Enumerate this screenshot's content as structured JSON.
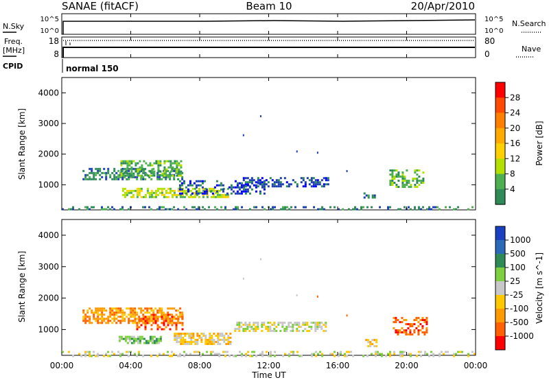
{
  "header": {
    "station": "SANAE (fitACF)",
    "beam": "Beam 10",
    "date": "20/Apr/2010"
  },
  "sky_panel": {
    "left_label": "N.Sky",
    "right_label": "N.Search",
    "left_ticks": [
      "10^5",
      "10^0"
    ],
    "right_ticks": [
      "10^5",
      "10^0"
    ]
  },
  "freq_panel": {
    "left_label_1": "Freq.",
    "left_label_2": "[MHz]",
    "right_label": "Nave",
    "left_ticks": [
      "18",
      "8"
    ],
    "right_ticks": [
      "80",
      "0"
    ]
  },
  "cpid": {
    "label": "CPID",
    "value": "normal 150"
  },
  "x_axis": {
    "label": "Time UT",
    "ticks": [
      "00:00",
      "04:00",
      "08:00",
      "12:00",
      "16:00",
      "20:00",
      "00:00"
    ]
  },
  "power_colorbar": {
    "label": "Power [dB]",
    "ticks": [
      "28",
      "24",
      "20",
      "16",
      "12",
      "8",
      "4"
    ],
    "colors": [
      "#ff0000",
      "#ff4a00",
      "#ff8000",
      "#ffaa00",
      "#ffd000",
      "#b4e000",
      "#4caf50",
      "#2e8b57",
      "#1e3fb0",
      "#0000ff"
    ]
  },
  "velocity_colorbar": {
    "label": "Velocity [m s^-1]",
    "ticks": [
      "1000",
      "500",
      "100",
      "25",
      "-25",
      "-100",
      "-500",
      "-1000"
    ],
    "colors": [
      "#1a3fc0",
      "#2a6ab8",
      "#2e8b57",
      "#7fd040",
      "#c8c8c8",
      "#ffc800",
      "#ff9a00",
      "#ff6000",
      "#ff0000"
    ]
  },
  "chart_data": [
    {
      "type": "heatmap",
      "title": "",
      "xlabel": "Time UT",
      "ylabel": "Slant Range [km]",
      "x_range_hours": [
        0,
        24
      ],
      "ylim": [
        180,
        4500
      ],
      "yticks": [
        1000,
        2000,
        3000,
        4000
      ],
      "colorbar": "Power [dB]",
      "blobs": [
        {
          "t0": 1.2,
          "t1": 7.0,
          "r0": 1200,
          "r1": 1550,
          "level": 7,
          "density": 0.55
        },
        {
          "t0": 3.4,
          "t1": 6.9,
          "r0": 1300,
          "r1": 1800,
          "level": 6,
          "density": 0.5
        },
        {
          "t0": 3.5,
          "t1": 9.6,
          "r0": 580,
          "r1": 900,
          "level": 5,
          "density": 0.6
        },
        {
          "t0": 6.8,
          "t1": 11.8,
          "r0": 680,
          "r1": 1150,
          "level": 8,
          "density": 0.35
        },
        {
          "t0": 10.5,
          "t1": 15.5,
          "r0": 950,
          "r1": 1250,
          "level": 8,
          "density": 0.5
        },
        {
          "t0": 17.5,
          "t1": 18.2,
          "r0": 550,
          "r1": 750,
          "level": 7,
          "density": 0.6
        },
        {
          "t0": 19.0,
          "t1": 21.0,
          "r0": 900,
          "r1": 1500,
          "level": 6,
          "density": 0.45
        },
        {
          "t0": 0.0,
          "t1": 24.0,
          "r0": 180,
          "r1": 300,
          "level": 7,
          "density": 0.35
        }
      ]
    },
    {
      "type": "heatmap",
      "title": "",
      "xlabel": "Time UT",
      "ylabel": "Slant Range [km]",
      "x_range_hours": [
        0,
        24
      ],
      "ylim": [
        180,
        4500
      ],
      "yticks": [
        1000,
        2000,
        3000,
        4000
      ],
      "colorbar": "Velocity [m s^-1]",
      "blobs": [
        {
          "t0": 1.2,
          "t1": 7.0,
          "r0": 1200,
          "r1": 1700,
          "level": 6,
          "density": 0.6
        },
        {
          "t0": 4.2,
          "t1": 7.0,
          "r0": 1000,
          "r1": 1500,
          "level": 7,
          "density": 0.45
        },
        {
          "t0": 3.3,
          "t1": 5.8,
          "r0": 550,
          "r1": 800,
          "level": 3,
          "density": 0.75
        },
        {
          "t0": 6.5,
          "t1": 9.8,
          "r0": 550,
          "r1": 900,
          "level": 5,
          "density": 0.7
        },
        {
          "t0": 10.0,
          "t1": 15.3,
          "r0": 950,
          "r1": 1250,
          "level": 4,
          "density": 0.55
        },
        {
          "t0": 17.6,
          "t1": 18.2,
          "r0": 450,
          "r1": 700,
          "level": 5,
          "density": 0.55
        },
        {
          "t0": 19.2,
          "t1": 21.2,
          "r0": 850,
          "r1": 1400,
          "level": 7,
          "density": 0.5
        },
        {
          "t0": 0.0,
          "t1": 24.0,
          "r0": 180,
          "r1": 320,
          "level": 4,
          "density": 0.3
        }
      ]
    }
  ]
}
